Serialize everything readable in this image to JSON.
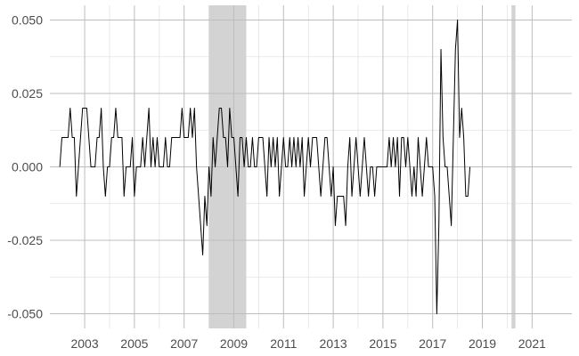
{
  "chart_data": {
    "type": "line",
    "title": "",
    "xlabel": "",
    "ylabel": "",
    "xlim": [
      2001.6,
      2022.6
    ],
    "ylim": [
      -0.055,
      0.055
    ],
    "x_ticks": [
      2003,
      2005,
      2007,
      2009,
      2011,
      2013,
      2015,
      2017,
      2019,
      2021
    ],
    "x_tick_labels": [
      "2003",
      "2005",
      "2007",
      "2009",
      "2011",
      "2013",
      "2015",
      "2017",
      "2019",
      "2021"
    ],
    "y_ticks": [
      -0.05,
      -0.025,
      0.0,
      0.025,
      0.05
    ],
    "y_tick_labels": [
      "-0.050",
      "-0.025",
      "0.000",
      "0.025",
      "0.050"
    ],
    "grid": true,
    "legend": "none",
    "line_color": "#000000",
    "shaded_periods": [
      {
        "start": 2008.0,
        "end": 2009.5
      },
      {
        "start": 2020.17,
        "end": 2020.33
      }
    ],
    "series": [
      {
        "x_start": 2002.0,
        "step": 0.08333,
        "values": [
          0,
          0.01,
          0.01,
          0.01,
          0.01,
          0.02,
          0.01,
          0.01,
          -0.01,
          0,
          0.01,
          0.02,
          0.02,
          0.02,
          0.01,
          0,
          0,
          0,
          0.01,
          0.01,
          0.02,
          0,
          -0.01,
          0,
          0,
          0.01,
          0.01,
          0.02,
          0.01,
          0.01,
          0.01,
          -0.01,
          0,
          0,
          0,
          0.01,
          -0.01,
          0,
          0,
          0,
          0.01,
          0,
          0.01,
          0.02,
          0,
          0.01,
          0,
          0.01,
          0,
          0,
          0,
          0.01,
          0,
          0,
          0.01,
          0.01,
          0.01,
          0.01,
          0.01,
          0.02,
          0.01,
          0.01,
          0.01,
          0.02,
          0.01,
          0.02,
          0,
          -0.01,
          -0.02,
          -0.03,
          -0.01,
          -0.02,
          0,
          -0.01,
          0.01,
          0,
          0.01,
          0.02,
          0.02,
          0.01,
          0.01,
          0,
          0.02,
          0.01,
          0.01,
          0,
          -0.01,
          0.01,
          0.01,
          0,
          0.01,
          0,
          0,
          0.01,
          0,
          0,
          0.01,
          0.01,
          0.01,
          0,
          -0.01,
          0.01,
          0,
          0.01,
          0,
          0.01,
          -0.01,
          0,
          0.01,
          0,
          0,
          0.01,
          0,
          0.01,
          0,
          0.01,
          0,
          0.01,
          -0.01,
          0,
          0.01,
          0,
          0.01,
          0.01,
          0.01,
          0,
          -0.01,
          0,
          0.01,
          0.01,
          0,
          -0.01,
          0,
          -0.02,
          -0.01,
          -0.01,
          -0.01,
          -0.01,
          -0.02,
          0,
          0.01,
          -0.01,
          0,
          0.01,
          0,
          -0.01,
          0,
          0.01,
          0,
          -0.01,
          0,
          0,
          -0.01,
          0,
          0,
          0,
          0,
          0,
          0,
          0.01,
          0,
          0.01,
          0,
          0.01,
          -0.01,
          0.01,
          0.01,
          0,
          0.01,
          0,
          -0.01,
          0,
          -0.01,
          0.01,
          0,
          -0.01,
          0,
          0.01,
          0,
          0,
          0,
          -0.01,
          -0.05,
          -0.02,
          0.04,
          0.01,
          0,
          0,
          -0.01,
          -0.02,
          0.01,
          0.04,
          0.05,
          0.01,
          0.02,
          0.01,
          -0.01,
          -0.01,
          0
        ]
      }
    ]
  }
}
